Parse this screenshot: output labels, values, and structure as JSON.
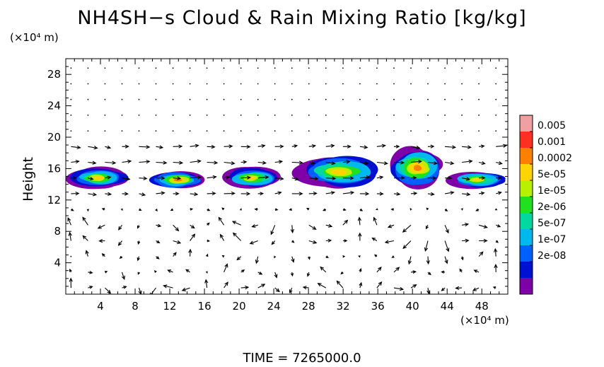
{
  "chart_data": {
    "type": "heatmap",
    "title": "NH4SH−s Cloud & Rain Mixing Ratio [kg/kg]",
    "xlabel": "",
    "ylabel": "Height",
    "x_unit": "(×10⁴ m)",
    "y_unit": "(×10⁴ m)",
    "xlim": [
      0,
      51
    ],
    "ylim": [
      0,
      30
    ],
    "x_ticks": [
      "4",
      "8",
      "12",
      "16",
      "20",
      "24",
      "28",
      "32",
      "36",
      "40",
      "44",
      "48"
    ],
    "y_ticks": [
      "4",
      "8",
      "12",
      "16",
      "20",
      "24",
      "28"
    ],
    "colorbar": {
      "labels": [
        "0.005",
        "0.001",
        "0.0002",
        "5e-05",
        "1e-05",
        "2e-06",
        "5e-07",
        "1e-07",
        "2e-08"
      ],
      "colors": [
        "#f0a0a0",
        "#ff3020",
        "#ff8000",
        "#ffd400",
        "#b8f000",
        "#20e020",
        "#00d8a0",
        "#00b8f0",
        "#0060ff",
        "#0010d0",
        "#8000a8"
      ]
    },
    "cloud_cells": [
      {
        "x": [
          0,
          7.5
        ],
        "y": [
          13.5,
          16.5
        ],
        "peak": "5e-05"
      },
      {
        "x": [
          9.5,
          16.5
        ],
        "y": [
          13.5,
          16.0
        ],
        "peak": "0.0002"
      },
      {
        "x": [
          18,
          25
        ],
        "y": [
          13.5,
          16.5
        ],
        "peak": "5e-05"
      },
      {
        "x": [
          26,
          37
        ],
        "y": [
          13.5,
          18.0
        ],
        "peak": "5e-05"
      },
      {
        "x": [
          37,
          44
        ],
        "y": [
          13.5,
          19.0
        ],
        "peak": "0.0002"
      },
      {
        "x": [
          44,
          51
        ],
        "y": [
          13.5,
          16.0
        ],
        "peak": "5e-05"
      }
    ],
    "vectors": "wind field arrows over the full domain"
  },
  "footer": {
    "time_label": "TIME  =  7265000.0"
  },
  "colors": {
    "background": "#ffffff",
    "axes": "#000000"
  }
}
